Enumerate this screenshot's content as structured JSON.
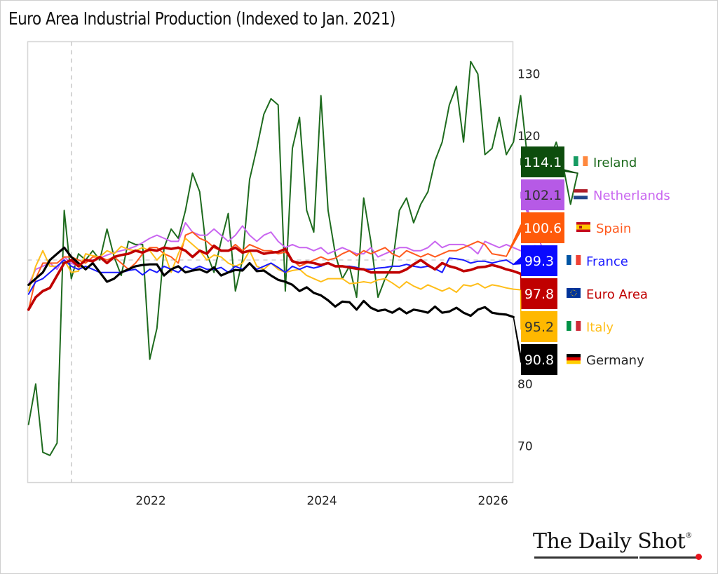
{
  "chart_data": {
    "type": "line",
    "title": "Euro Area Industrial Production (Indexed to Jan. 2021)",
    "xlabel": "",
    "ylabel": "",
    "x_start": "2020-07",
    "x_frequency": "monthly",
    "xlim": [
      2020.49,
      2026.16
    ],
    "ylim": [
      66,
      135
    ],
    "yticks": [
      70,
      80,
      90,
      100,
      110,
      120,
      130
    ],
    "ytick_labels_visible": [
      "130",
      "120",
      "80",
      "70"
    ],
    "xticks": [
      2022,
      2024,
      2026
    ],
    "xtick_labels": [
      "2022",
      "2024",
      "2026"
    ],
    "reference_lines": {
      "horizontal": 100,
      "vertical": "2021-01"
    },
    "grid": false,
    "legend_placement": "right",
    "series": [
      {
        "name": "Ireland",
        "color": "#1e6b1e",
        "tag_bg": "#0d4d0d",
        "tag_fg": "#ffffff",
        "last": "114.1",
        "flag": "ireland-flag",
        "values": [
          73.5,
          80,
          69,
          68.5,
          70.5,
          108,
          97,
          101,
          100,
          101.5,
          100,
          105,
          100.5,
          97.5,
          103,
          102.5,
          102.5,
          84,
          89,
          102,
          105,
          103.5,
          108,
          114,
          111,
          101,
          98,
          103,
          107.5,
          95,
          100,
          113,
          118,
          123.5,
          126,
          125,
          95,
          118,
          123,
          108,
          104.5,
          126.5,
          108,
          101,
          97,
          99,
          94,
          110,
          103,
          94,
          97,
          99,
          108,
          110,
          106,
          109,
          111,
          116,
          119,
          125,
          128,
          119,
          132,
          130,
          117,
          118,
          123,
          117,
          119,
          126.5,
          116,
          118,
          115,
          116,
          119,
          115,
          109,
          114
        ]
      },
      {
        "name": "Netherlands",
        "color": "#c966f0",
        "tag_bg": "#b65ae6",
        "tag_fg": "#333333",
        "last": "102.1",
        "flag": "netherlands-flag",
        "values": [
          96,
          98.5,
          99,
          99.5,
          98.5,
          100.5,
          99.5,
          99,
          100,
          100,
          100.3,
          100.8,
          101.2,
          101.5,
          101.8,
          102.2,
          102.8,
          103.5,
          104,
          103.5,
          103,
          103,
          106,
          104.5,
          104,
          104,
          105,
          104,
          103,
          104,
          105.5,
          104,
          103,
          104,
          104.5,
          103,
          102,
          102.5,
          102,
          102,
          101.5,
          102,
          101,
          101.5,
          102,
          101.5,
          101,
          101,
          102,
          100.5,
          101,
          101.5,
          102,
          102,
          101.5,
          101.5,
          102,
          103,
          102,
          102.5,
          102.5,
          102.5,
          102,
          101,
          103,
          102.5,
          102,
          102.5,
          102,
          101.5,
          102,
          102.3,
          102.1
        ]
      },
      {
        "name": "Spain",
        "color": "#ff5a1e",
        "tag_bg": "#ff5a0a",
        "tag_fg": "#ffffff",
        "last": "100.6",
        "flag": "spain-flag",
        "values": [
          92,
          97,
          99.5,
          99.5,
          99.5,
          100.5,
          100.5,
          100,
          99.5,
          100.5,
          100.5,
          100,
          100.5,
          99.5,
          98.5,
          99.5,
          101,
          102,
          102,
          101,
          100.5,
          99.5,
          104,
          104.5,
          103.5,
          103,
          102,
          101.5,
          101.5,
          102.5,
          101.5,
          102.5,
          102,
          101.5,
          101.5,
          101,
          101.3,
          100,
          99,
          99.5,
          100,
          100.5,
          100,
          100.3,
          101,
          101.5,
          100.7,
          101.5,
          101,
          101.5,
          102,
          101,
          100.5,
          101.5,
          101,
          100.5,
          101,
          100.5,
          101,
          101.5,
          101.5,
          102,
          102.5,
          103,
          102.5,
          101,
          100.8,
          100.6
        ]
      },
      {
        "name": "France",
        "color": "#1a1aff",
        "tag_bg": "#0a0aff",
        "tag_fg": "#ffffff",
        "last": "99.3",
        "flag": "france-flag",
        "values": [
          94.5,
          96.5,
          97,
          98,
          99,
          100,
          99,
          98.5,
          99,
          98.5,
          98,
          98,
          98,
          98,
          98.3,
          98.5,
          97.6,
          98.5,
          98,
          99,
          98.5,
          98,
          99,
          98.5,
          99,
          98.5,
          98.5,
          98.8,
          98,
          99,
          98.5,
          99.5,
          98.5,
          99,
          99.5,
          98.8,
          98,
          99,
          98.5,
          99,
          98.7,
          99,
          99.5,
          99,
          99,
          99,
          98.8,
          98.5,
          98.5,
          98.7,
          98.8,
          99,
          99,
          99.3,
          99,
          98.8,
          99,
          98.6,
          98,
          100.3,
          100.2,
          100,
          99.5,
          99.8,
          99.8,
          99.5,
          99.8,
          100,
          99.3
        ]
      },
      {
        "name": "Euro Area",
        "color": "#c00000",
        "tag_bg": "#c00000",
        "tag_fg": "#ffffff",
        "last": "97.8",
        "flag": "eu-flag",
        "values": [
          92,
          94,
          95,
          95.5,
          97.5,
          99.5,
          100,
          99,
          100,
          99.8,
          100.5,
          99.5,
          100.5,
          100.8,
          101,
          101.5,
          101.2,
          101.7,
          101.5,
          102,
          101.8,
          102,
          101.5,
          100.5,
          101.5,
          101,
          102.3,
          101.5,
          101.5,
          102,
          101.2,
          101.5,
          101.5,
          101,
          101.2,
          101.3,
          101.8,
          99.8,
          99.5,
          99.7,
          99.5,
          99.2,
          99.5,
          99,
          99,
          98.8,
          98.6,
          98.5,
          98,
          98,
          98,
          98,
          98,
          98.5,
          99.3,
          100,
          99.2,
          98.5,
          99.5,
          99,
          98.7,
          98.2,
          98.4,
          98.8,
          98.9,
          99.2,
          98.9,
          98.5,
          98.2,
          97.8
        ]
      },
      {
        "name": "Italy",
        "color": "#ffbe19",
        "tag_bg": "#ffb800",
        "tag_fg": "#333333",
        "last": "95.2",
        "flag": "italy-flag",
        "values": [
          95,
          99,
          101.5,
          99,
          99,
          100,
          98,
          98.2,
          101,
          100.7,
          100.5,
          101.5,
          101,
          102.2,
          101.7,
          101.5,
          102,
          101.5,
          100,
          101.2,
          98,
          101,
          103.5,
          102.5,
          101.5,
          100,
          100.8,
          100.5,
          99.5,
          99,
          99.5,
          101.5,
          99,
          98.5,
          99.5,
          98.5,
          98,
          98.3,
          98.5,
          97.5,
          97,
          96.5,
          97,
          97,
          97,
          96.2,
          96.3,
          96.5,
          96.3,
          96.8,
          97,
          96.3,
          95.5,
          96.5,
          95.8,
          95.3,
          96,
          95.5,
          95,
          95.5,
          94.8,
          96,
          95.8,
          96.2,
          95.5,
          96,
          95.8,
          95.5,
          95.3,
          95.2
        ]
      },
      {
        "name": "Germany",
        "color": "#000000",
        "tag_bg": "#000000",
        "tag_fg": "#ffffff",
        "last": "90.8",
        "flag": "germany-flag",
        "values": [
          96,
          97,
          98,
          100,
          101,
          102,
          100.5,
          99.5,
          98.5,
          99.5,
          98,
          96.5,
          97,
          98,
          98.5,
          99,
          99.2,
          99.3,
          99.3,
          97.5,
          98.5,
          99,
          98,
          98.3,
          98.5,
          98,
          98.8,
          97.5,
          98,
          98.4,
          98.3,
          99.5,
          98.2,
          98.3,
          97.5,
          96.8,
          96.5,
          96,
          95,
          95.6,
          94.7,
          94.3,
          93.5,
          92.5,
          93.3,
          93.2,
          92,
          93.4,
          92.3,
          91.8,
          92,
          91.5,
          92.2,
          91.4,
          92,
          91.8,
          91.5,
          92.5,
          91.5,
          91.7,
          92.3,
          91.5,
          91,
          92,
          92.4,
          91.5,
          91.3,
          91.2,
          90.8
        ]
      }
    ]
  },
  "legend": {
    "tags": [
      {
        "value": "114.1",
        "label": "Ireland"
      },
      {
        "value": "102.1",
        "label": "Netherlands"
      },
      {
        "value": "100.6",
        "label": "Spain"
      },
      {
        "value": "99.3",
        "label": "France"
      },
      {
        "value": "97.8",
        "label": "Euro Area"
      },
      {
        "value": "95.2",
        "label": "Italy"
      },
      {
        "value": "90.8",
        "label": "Germany"
      }
    ]
  },
  "branding": {
    "name": "The Daily Shot",
    "mark": "®",
    "accent": "#e8141c"
  }
}
